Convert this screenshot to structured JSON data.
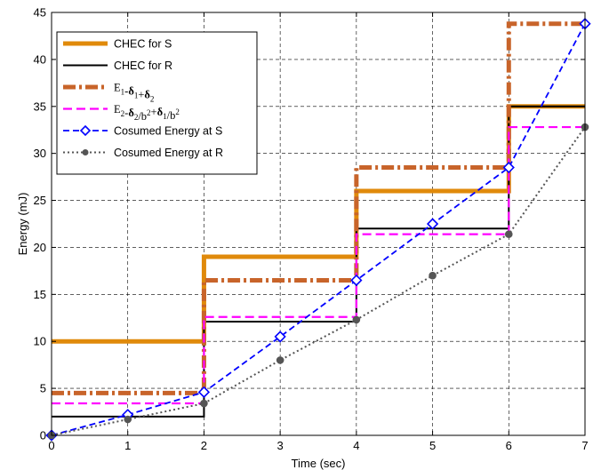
{
  "chart_data": {
    "type": "line",
    "title": "",
    "xlabel": "Time (sec)",
    "ylabel": "Energy (mJ)",
    "xlim": [
      0,
      7
    ],
    "ylim": [
      0,
      45
    ],
    "xticks": [
      0,
      1,
      2,
      3,
      4,
      5,
      6,
      7
    ],
    "yticks": [
      0,
      5,
      10,
      15,
      20,
      25,
      30,
      35,
      40,
      45
    ],
    "grid": true,
    "legend_position": "top-left",
    "series": [
      {
        "name": "CHEC for S",
        "step": true,
        "color": "#E08A0B",
        "style": "solid",
        "x": [
          0,
          2,
          4,
          6,
          7
        ],
        "y": [
          10,
          19,
          26,
          35,
          35
        ]
      },
      {
        "name": "CHEC for R",
        "step": true,
        "color": "#000000",
        "style": "solid",
        "x": [
          0,
          2,
          4,
          6,
          7
        ],
        "y": [
          2,
          12.1,
          22,
          35,
          35
        ]
      },
      {
        "name_parts": [
          "E",
          "1",
          "-",
          "δ",
          "1",
          "+",
          "δ",
          "2"
        ],
        "step": true,
        "color": "#C8642A",
        "style": "dash-dot",
        "x": [
          0,
          2,
          4,
          6,
          7
        ],
        "y": [
          4.5,
          16.5,
          28.5,
          43.8,
          43.8
        ]
      },
      {
        "name_parts": [
          "E",
          "2",
          "-",
          "δ",
          "2",
          "/b",
          "2",
          "+",
          "δ",
          "1",
          "/b",
          "2"
        ],
        "step": true,
        "color": "#FF00FF",
        "style": "dashed",
        "x": [
          0,
          2,
          4,
          6,
          7
        ],
        "y": [
          3.4,
          12.6,
          21.4,
          32.8,
          32.8
        ]
      },
      {
        "name": "Cosumed Energy at S",
        "step": false,
        "color": "#0000FF",
        "style": "dashed",
        "marker": "diamond",
        "x": [
          0,
          1,
          2,
          3,
          4,
          5,
          6,
          7
        ],
        "y": [
          0,
          2.2,
          4.6,
          10.5,
          16.5,
          22.5,
          28.5,
          43.8
        ]
      },
      {
        "name": "Cosumed Energy at R",
        "step": false,
        "color": "#555555",
        "style": "dotted",
        "marker": "circle",
        "x": [
          0,
          1,
          2,
          3,
          4,
          5,
          6,
          7
        ],
        "y": [
          0,
          1.7,
          3.4,
          8,
          12.3,
          17,
          21.4,
          32.8
        ]
      }
    ]
  }
}
